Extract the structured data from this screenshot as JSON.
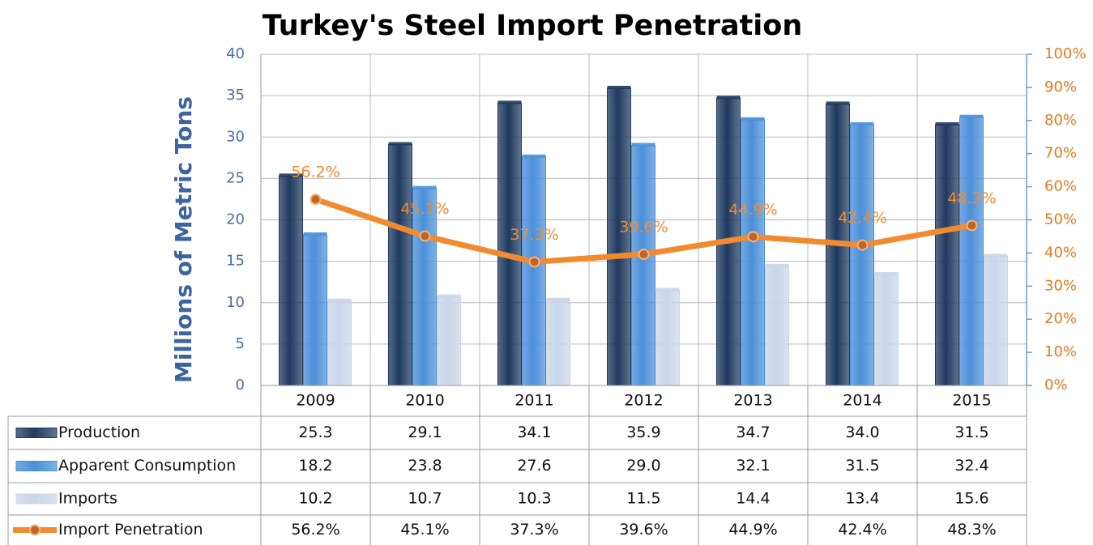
{
  "chart_data": {
    "type": "bar",
    "title": "Turkey's Steel Import Penetration",
    "y_label": "Millions of Metric Tons",
    "categories": [
      "2009",
      "2010",
      "2011",
      "2012",
      "2013",
      "2014",
      "2015"
    ],
    "series": [
      {
        "name": "Production",
        "color": "#1f3a5f",
        "values": [
          25.3,
          29.1,
          34.1,
          35.9,
          34.7,
          34.0,
          31.5
        ],
        "value_labels": [
          "25.3",
          "29.1",
          "34.1",
          "35.9",
          "34.7",
          "34.0",
          "31.5"
        ]
      },
      {
        "name": "Apparent Consumption",
        "color": "#4a8fd8",
        "values": [
          18.2,
          23.8,
          27.6,
          29.0,
          32.1,
          31.5,
          32.4
        ],
        "value_labels": [
          "18.2",
          "23.8",
          "27.6",
          "29.0",
          "32.1",
          "31.5",
          "32.4"
        ]
      },
      {
        "name": "Imports",
        "color": "#c9d6e8",
        "values": [
          10.2,
          10.7,
          10.3,
          11.5,
          14.4,
          13.4,
          15.6
        ],
        "value_labels": [
          "10.2",
          "10.7",
          "10.3",
          "11.5",
          "14.4",
          "13.4",
          "15.6"
        ]
      },
      {
        "name": "Import Penetration",
        "color": "#f28a30",
        "type": "line",
        "axis": "y2",
        "values": [
          56.2,
          45.1,
          37.3,
          39.6,
          44.9,
          42.4,
          48.3
        ],
        "value_labels": [
          "56.2%",
          "45.1%",
          "37.3%",
          "39.6%",
          "44.9%",
          "42.4%",
          "48.3%"
        ]
      }
    ],
    "ylim": [
      0,
      40
    ],
    "yticks": [
      0,
      5,
      10,
      15,
      20,
      25,
      30,
      35,
      40
    ],
    "y2lim": [
      0,
      100
    ],
    "y2ticks": [
      {
        "value": 0,
        "label": "0%"
      },
      {
        "value": 10,
        "label": "10%"
      },
      {
        "value": 20,
        "label": "20%"
      },
      {
        "value": 30,
        "label": "30%"
      },
      {
        "value": 40,
        "label": "40%"
      },
      {
        "value": 50,
        "label": "50%"
      },
      {
        "value": 60,
        "label": "60%"
      },
      {
        "value": 70,
        "label": "70%"
      },
      {
        "value": 80,
        "label": "80%"
      },
      {
        "value": 90,
        "label": "90%"
      },
      {
        "value": 100,
        "label": "100%"
      }
    ],
    "grid": true
  }
}
